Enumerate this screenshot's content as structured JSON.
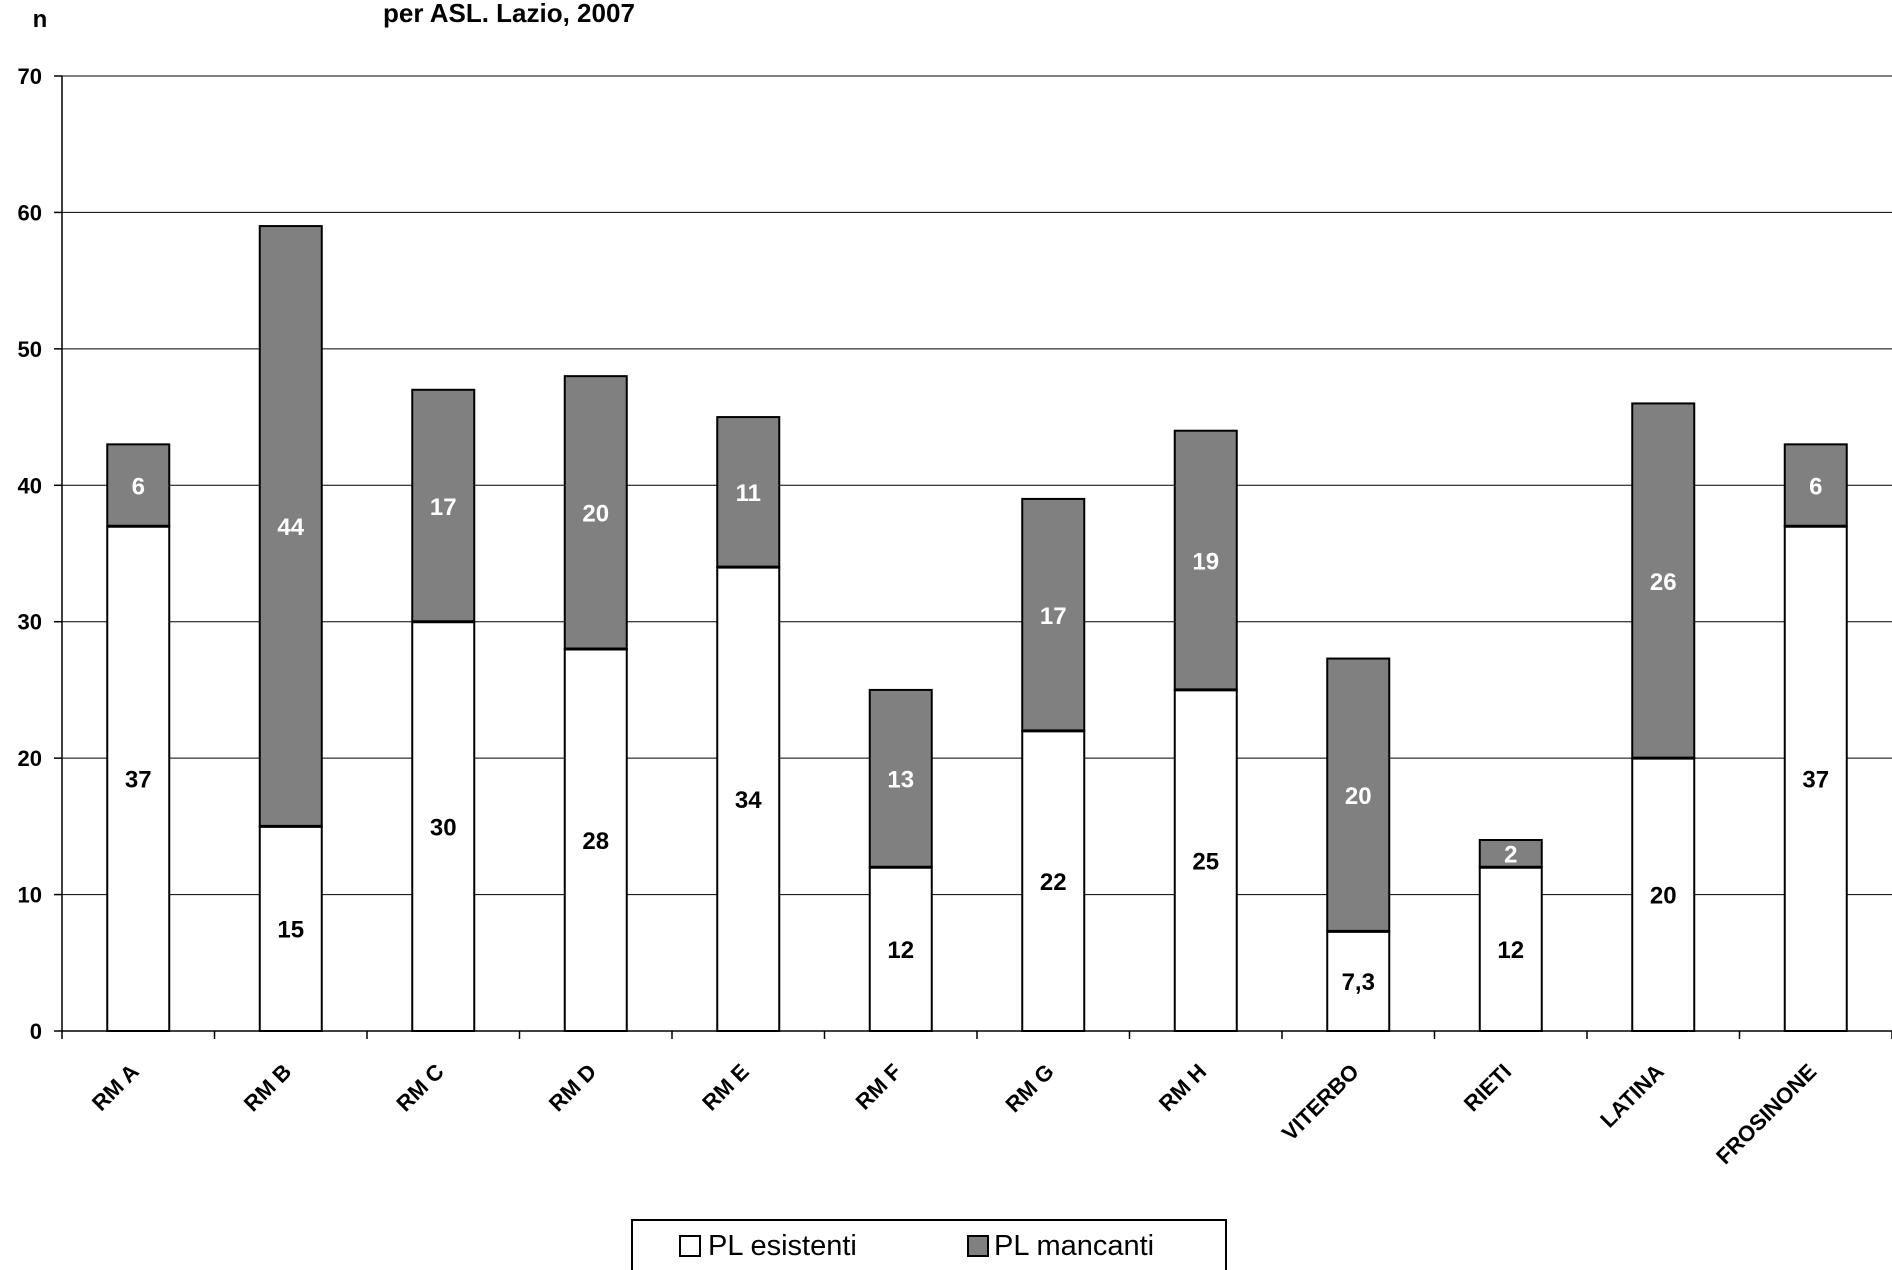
{
  "chart_data": {
    "type": "bar",
    "stacked": true,
    "title": "per ASL. Lazio, 2007",
    "ylabel": "n",
    "xlabel": "",
    "ylim": [
      0,
      70
    ],
    "yticks": [
      0,
      10,
      20,
      30,
      40,
      50,
      60,
      70
    ],
    "grid": true,
    "legend_position": "bottom",
    "categories": [
      "RM A",
      "RM B",
      "RM C",
      "RM D",
      "RM E",
      "RM F",
      "RM G",
      "RM H",
      "VITERBO",
      "RIETI",
      "LATINA",
      "FROSINONE"
    ],
    "series": [
      {
        "name": "PL esistenti",
        "color": "#ffffff",
        "values": [
          37,
          15,
          30,
          28,
          34,
          12,
          22,
          25,
          7.3,
          12,
          20,
          37
        ],
        "labels": [
          "37",
          "15",
          "30",
          "28",
          "34",
          "12",
          "22",
          "25",
          "7,3",
          "12",
          "20",
          "37"
        ]
      },
      {
        "name": "PL mancanti",
        "color": "#808080",
        "values": [
          6,
          44,
          17,
          20,
          11,
          13,
          17,
          19,
          20,
          2,
          26,
          6
        ],
        "labels": [
          "6",
          "44",
          "17",
          "20",
          "11",
          "13",
          "17",
          "19",
          "20",
          "2",
          "26",
          "6"
        ]
      }
    ]
  }
}
